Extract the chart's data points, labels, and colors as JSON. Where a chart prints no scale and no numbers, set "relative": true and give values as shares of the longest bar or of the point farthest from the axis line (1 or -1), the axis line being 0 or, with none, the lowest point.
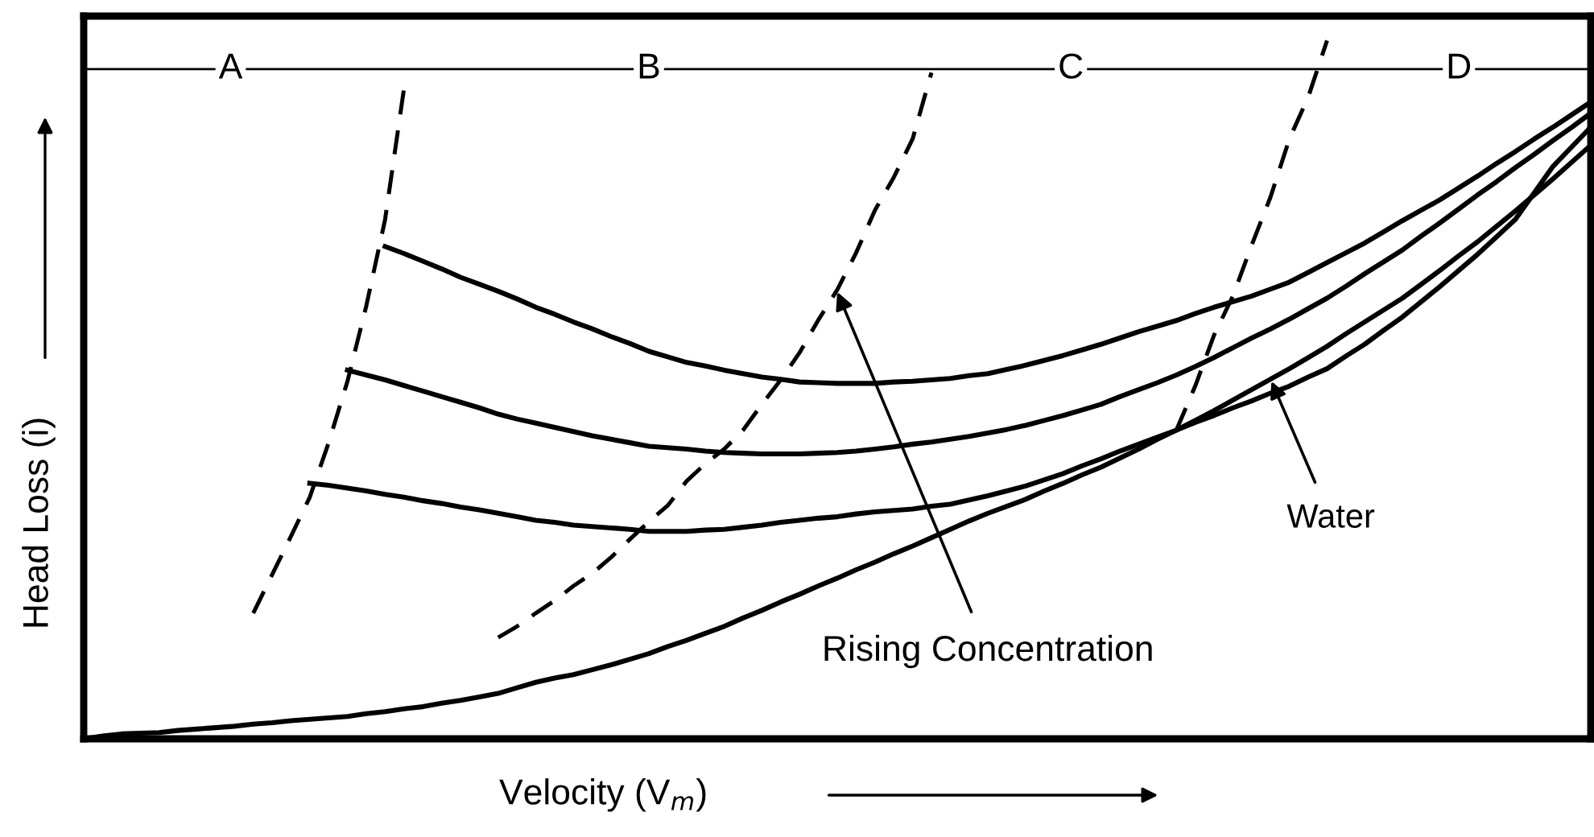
{
  "chart_data": {
    "type": "line",
    "relative": true,
    "xlabel": "Velocity (V$_{m}$)",
    "ylabel": "Head Loss (i)",
    "categories": [
      null,
      null,
      null,
      null,
      null,
      null,
      null,
      null,
      null,
      null,
      null,
      null,
      null,
      null,
      null,
      null,
      null,
      null,
      null,
      null,
      null,
      null,
      null,
      null,
      null,
      null,
      null,
      null,
      null,
      null,
      null,
      null,
      null,
      null,
      null,
      null,
      null,
      null,
      null,
      null,
      null,
      null,
      null,
      null,
      null,
      null,
      null,
      null,
      null,
      null,
      null,
      null,
      null,
      null,
      null,
      null,
      null,
      null,
      null,
      null,
      null,
      null,
      null,
      null,
      null,
      null,
      null,
      null,
      null,
      null,
      null,
      null,
      null,
      null,
      null,
      null,
      null,
      null,
      null,
      null,
      null
    ],
    "series": [
      {
        "name": "Water",
        "color": "#000000",
        "line_style": "solid",
        "values": [
          0,
          0.004,
          0.007,
          0.008,
          0.009,
          0.012,
          0.014,
          0.016,
          0.018,
          0.021,
          0.023,
          0.026,
          0.028,
          0.03,
          0.032,
          0.036,
          0.039,
          0.043,
          0.046,
          0.051,
          0.055,
          0.06,
          0.065,
          0.073,
          0.081,
          0.087,
          0.092,
          0.099,
          0.106,
          0.114,
          0.122,
          0.132,
          0.141,
          0.151,
          0.161,
          0.173,
          0.184,
          0.196,
          0.207,
          0.219,
          0.23,
          0.242,
          0.253,
          0.265,
          0.276,
          0.288,
          0.3,
          0.312,
          0.323,
          0.333,
          0.343,
          0.355,
          0.366,
          0.378,
          0.389,
          0.402,
          0.415,
          0.429,
          0.442,
          0.456,
          0.47,
          0.485,
          0.5,
          0.515,
          0.53,
          0.546,
          0.562,
          0.58,
          0.597,
          0.614,
          0.631,
          0.651,
          0.671,
          0.692,
          0.712,
          0.734,
          0.756,
          0.779,
          0.802,
          0.826,
          0.85
        ]
      },
      {
        "color": "#000000",
        "line_style": "solid",
        "values": [
          null,
          null,
          null,
          null,
          null,
          null,
          null,
          null,
          null,
          null,
          null,
          null,
          0.366,
          0.363,
          0.359,
          0.355,
          0.35,
          0.346,
          0.341,
          0.337,
          0.332,
          0.328,
          0.323,
          0.318,
          0.313,
          0.31,
          0.306,
          0.304,
          0.302,
          0.3,
          0.297,
          0.297,
          0.297,
          0.299,
          0.3,
          0.303,
          0.306,
          0.31,
          0.313,
          0.316,
          0.318,
          0.322,
          0.325,
          0.327,
          0.329,
          0.333,
          0.336,
          0.342,
          0.348,
          0.355,
          0.362,
          0.371,
          0.38,
          0.391,
          0.401,
          0.412,
          0.422,
          0.432,
          0.442,
          0.453,
          0.463,
          0.474,
          0.484,
          0.495,
          0.505,
          0.518,
          0.53,
          0.548,
          0.565,
          0.585,
          0.604,
          0.626,
          0.648,
          0.671,
          0.694,
          0.719,
          0.744,
          0.782,
          0.82,
          0.848,
          0.876
        ]
      },
      {
        "color": "#000000",
        "line_style": "solid",
        "values": [
          null,
          null,
          null,
          null,
          null,
          null,
          null,
          null,
          null,
          null,
          null,
          null,
          null,
          null,
          0.528,
          0.521,
          0.514,
          0.506,
          0.498,
          0.49,
          0.482,
          0.474,
          0.465,
          0.458,
          0.452,
          0.446,
          0.44,
          0.434,
          0.429,
          0.424,
          0.419,
          0.417,
          0.415,
          0.412,
          0.41,
          0.409,
          0.408,
          0.408,
          0.408,
          0.409,
          0.41,
          0.412,
          0.415,
          0.418,
          0.422,
          0.425,
          0.429,
          0.433,
          0.438,
          0.443,
          0.449,
          0.456,
          0.463,
          0.471,
          0.479,
          0.49,
          0.5,
          0.51,
          0.521,
          0.533,
          0.546,
          0.56,
          0.574,
          0.587,
          0.601,
          0.616,
          0.631,
          0.648,
          0.666,
          0.683,
          0.7,
          0.72,
          0.739,
          0.759,
          0.779,
          0.798,
          0.818,
          0.837,
          0.857,
          0.876,
          0.896
        ]
      },
      {
        "color": "#000000",
        "line_style": "solid",
        "values": [
          null,
          null,
          null,
          null,
          null,
          null,
          null,
          null,
          null,
          null,
          null,
          null,
          null,
          null,
          null,
          null,
          0.705,
          0.695,
          0.684,
          0.673,
          0.661,
          0.651,
          0.641,
          0.63,
          0.618,
          0.608,
          0.597,
          0.587,
          0.576,
          0.566,
          0.555,
          0.547,
          0.539,
          0.534,
          0.528,
          0.523,
          0.518,
          0.515,
          0.511,
          0.51,
          0.509,
          0.509,
          0.509,
          0.511,
          0.512,
          0.514,
          0.516,
          0.52,
          0.523,
          0.529,
          0.535,
          0.542,
          0.549,
          0.557,
          0.565,
          0.574,
          0.583,
          0.591,
          0.599,
          0.609,
          0.618,
          0.626,
          0.634,
          0.644,
          0.654,
          0.668,
          0.682,
          0.696,
          0.71,
          0.726,
          0.742,
          0.757,
          0.772,
          0.789,
          0.806,
          0.824,
          0.841,
          0.859,
          0.876,
          0.894,
          0.912
        ]
      },
      {
        "color": "#000000",
        "line_style": "dashed",
        "values": [
          null,
          null,
          null,
          null,
          null,
          null,
          null,
          null,
          null,
          0.18,
          0.235,
          0.29,
          0.346,
          0.424,
          0.512,
          0.62,
          0.744,
          0.931,
          null,
          null,
          null,
          null,
          null,
          null,
          null,
          null,
          null,
          null,
          null,
          null,
          null,
          null,
          null,
          null,
          null,
          null,
          null,
          null,
          null,
          null,
          null,
          null,
          null,
          null,
          null,
          null,
          null,
          null,
          null,
          null,
          null,
          null,
          null,
          null,
          null,
          null,
          null,
          null,
          null,
          null,
          null,
          null,
          null,
          null,
          null,
          null,
          null,
          null,
          null,
          null,
          null,
          null,
          null,
          null,
          null,
          null,
          null,
          null,
          null,
          null,
          null
        ]
      },
      {
        "color": "#000000",
        "line_style": "dashed",
        "values": [
          null,
          null,
          null,
          null,
          null,
          null,
          null,
          null,
          null,
          null,
          null,
          null,
          null,
          null,
          null,
          null,
          null,
          null,
          null,
          null,
          null,
          null,
          0.145,
          0.161,
          0.18,
          0.198,
          0.219,
          0.237,
          0.26,
          0.286,
          0.311,
          0.334,
          0.369,
          0.394,
          0.415,
          0.442,
          0.479,
          0.514,
          0.553,
          0.6,
          0.643,
          0.696,
          0.757,
          0.804,
          0.859,
          0.954,
          null,
          null,
          null,
          null,
          null,
          null,
          null,
          null,
          null,
          null,
          null,
          null,
          null,
          null,
          null,
          null,
          null,
          null,
          null,
          null,
          null,
          null,
          null,
          null,
          null,
          null,
          null,
          null,
          null,
          null,
          null,
          null,
          null,
          null,
          null
        ]
      },
      {
        "color": "#000000",
        "line_style": "dashed",
        "values": [
          null,
          null,
          null,
          null,
          null,
          null,
          null,
          null,
          null,
          null,
          null,
          null,
          null,
          null,
          null,
          null,
          null,
          null,
          null,
          null,
          null,
          null,
          null,
          null,
          null,
          null,
          null,
          null,
          null,
          null,
          null,
          null,
          null,
          null,
          null,
          null,
          null,
          null,
          null,
          null,
          null,
          null,
          null,
          null,
          null,
          null,
          null,
          null,
          null,
          null,
          null,
          null,
          null,
          null,
          null,
          null,
          null,
          null,
          0.442,
          0.505,
          0.578,
          0.634,
          0.707,
          0.776,
          0.859,
          0.919,
          1.0,
          null,
          null,
          null,
          null,
          null,
          null,
          null,
          null,
          null,
          null,
          null,
          null,
          null,
          null
        ]
      }
    ],
    "ref_lines": [
      {
        "axis": "y",
        "value": 0.959,
        "color": "#000000"
      }
    ],
    "annotations": [
      "A",
      "B",
      "C",
      "D",
      "Rising Concentration"
    ]
  }
}
